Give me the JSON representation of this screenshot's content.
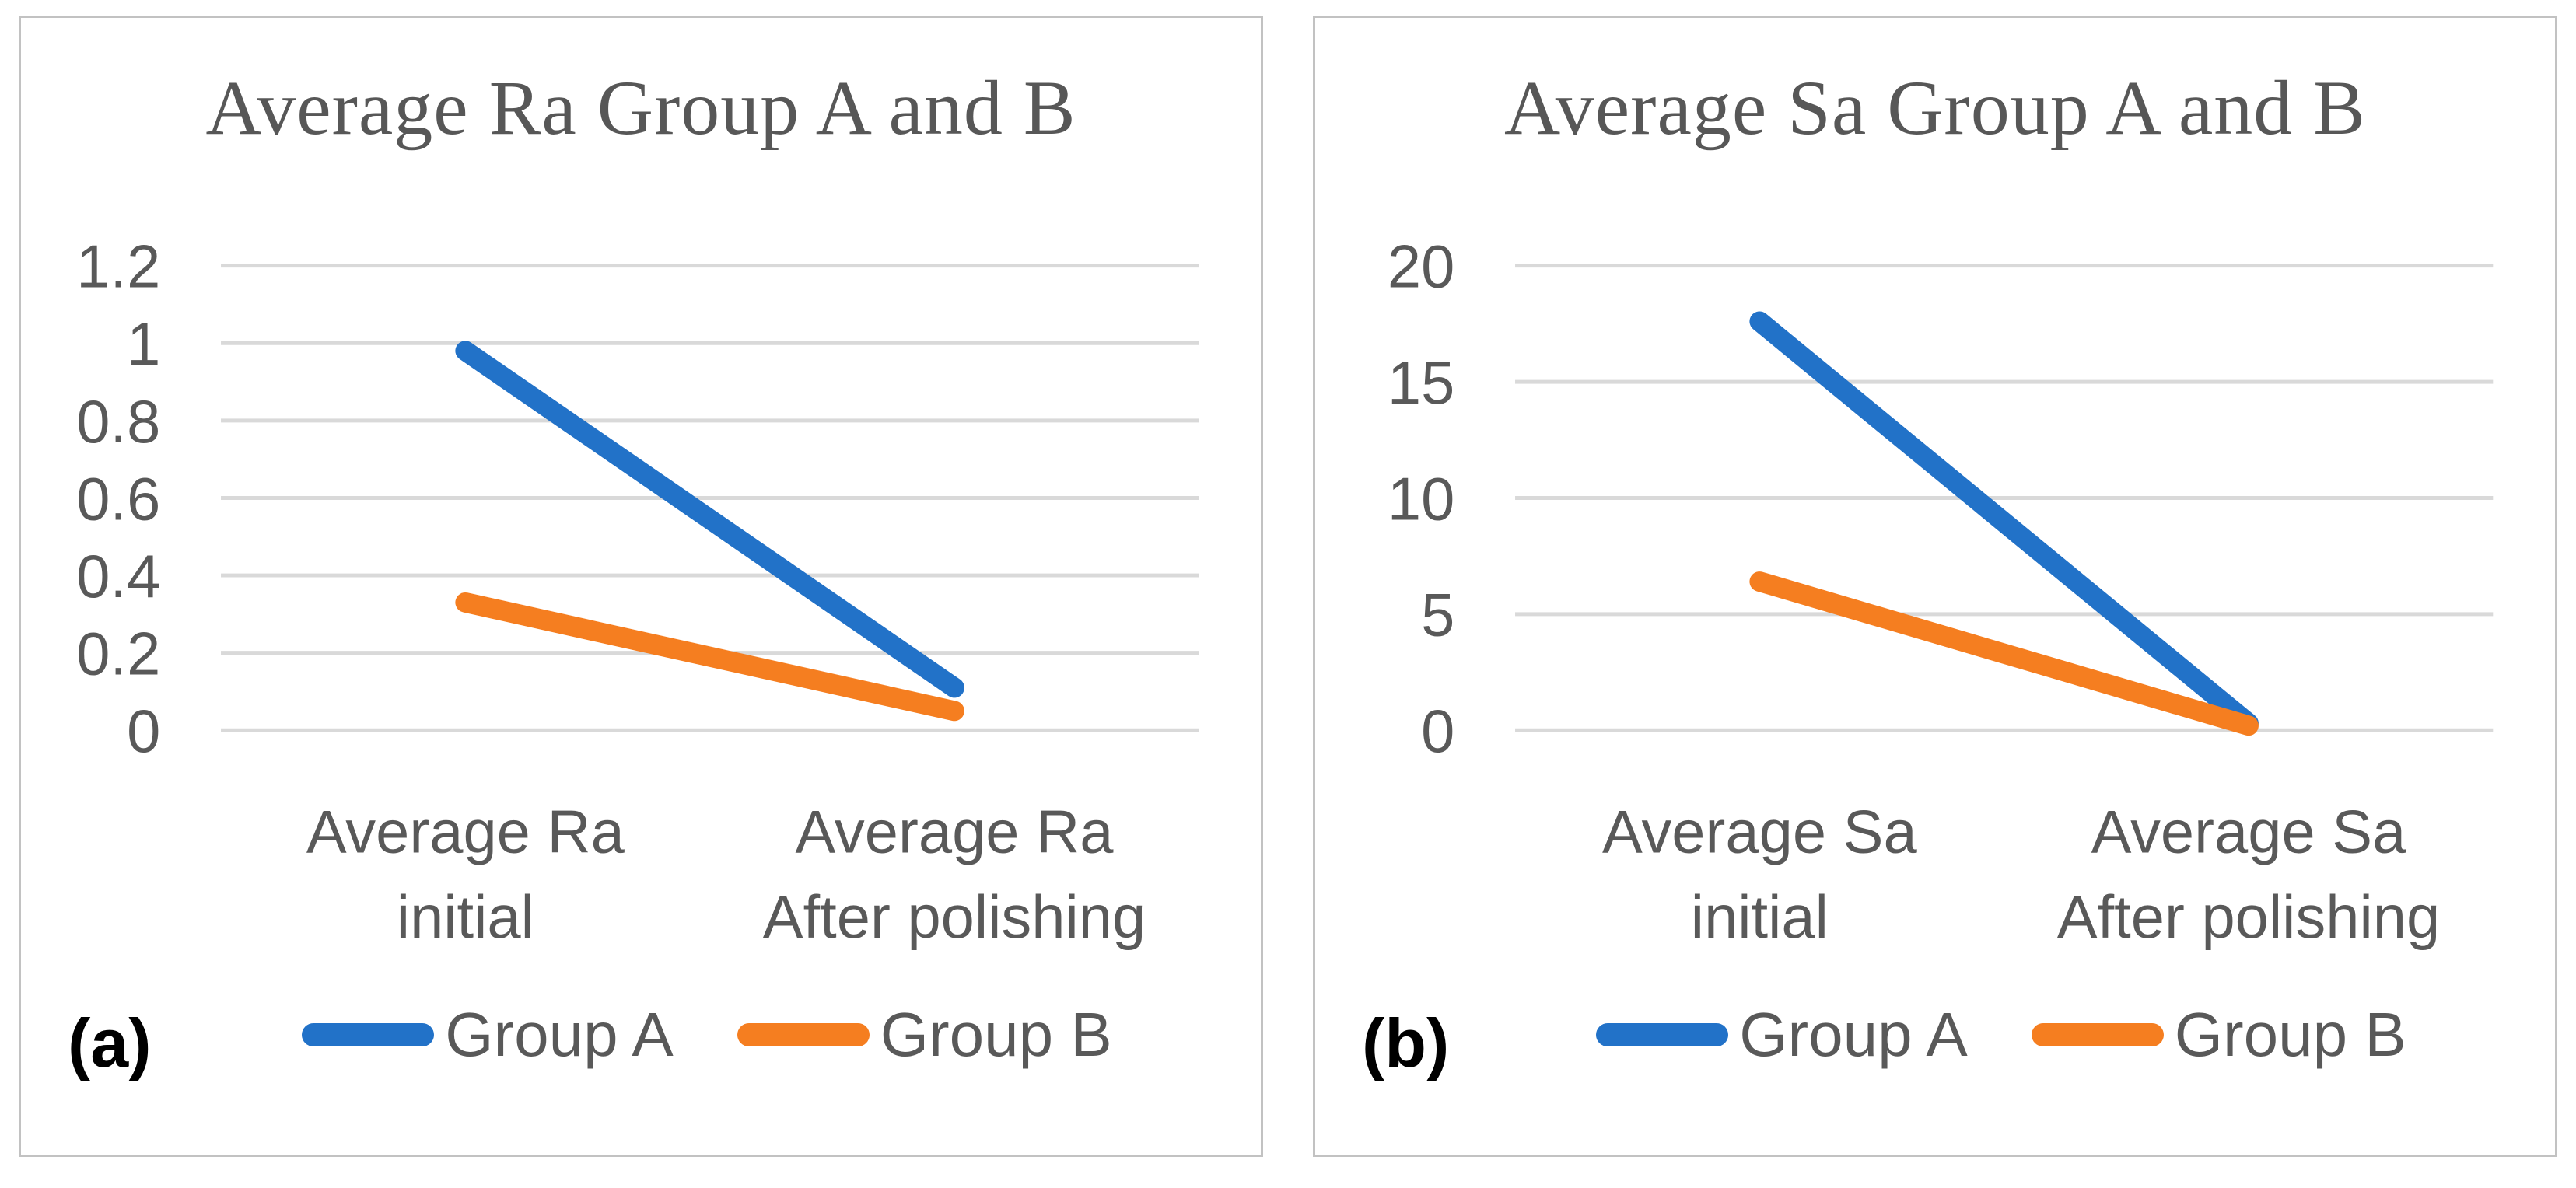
{
  "colors": {
    "group_a_line": "#2272C8",
    "group_b_line": "#F57E20",
    "gridline": "#D9D9D9",
    "axis_text": "#595959",
    "title_text": "#575757",
    "panel_border": "#C2C2C2",
    "panel_label_text": "#000000"
  },
  "chart_data": [
    {
      "type": "line",
      "panel_label": "(a)",
      "title": "Average Ra Group A and B",
      "categories": [
        [
          "Average Ra",
          "initial"
        ],
        [
          "Average Ra",
          "After polishing"
        ]
      ],
      "series": [
        {
          "name": "Group A",
          "color": "#2272C8",
          "values": [
            0.98,
            0.11
          ]
        },
        {
          "name": "Group B",
          "color": "#F57E20",
          "values": [
            0.33,
            0.05
          ]
        }
      ],
      "ylim": [
        0,
        1.2
      ],
      "y_ticks": [
        1.2,
        1,
        0.8,
        0.6,
        0.4,
        0.2,
        0
      ],
      "xlabel": "",
      "ylabel": "",
      "grid": true,
      "legend_position": "bottom"
    },
    {
      "type": "line",
      "panel_label": "(b)",
      "title": "Average Sa Group A and B",
      "categories": [
        [
          "Average Sa",
          "initial"
        ],
        [
          "Average Sa",
          "After polishing"
        ]
      ],
      "series": [
        {
          "name": "Group A",
          "color": "#2272C8",
          "values": [
            17.6,
            0.3
          ]
        },
        {
          "name": "Group B",
          "color": "#F57E20",
          "values": [
            6.4,
            0.2
          ]
        }
      ],
      "ylim": [
        0,
        20
      ],
      "y_ticks": [
        20,
        15,
        10,
        5,
        0
      ],
      "xlabel": "",
      "ylabel": "",
      "grid": true,
      "legend_position": "bottom"
    }
  ]
}
